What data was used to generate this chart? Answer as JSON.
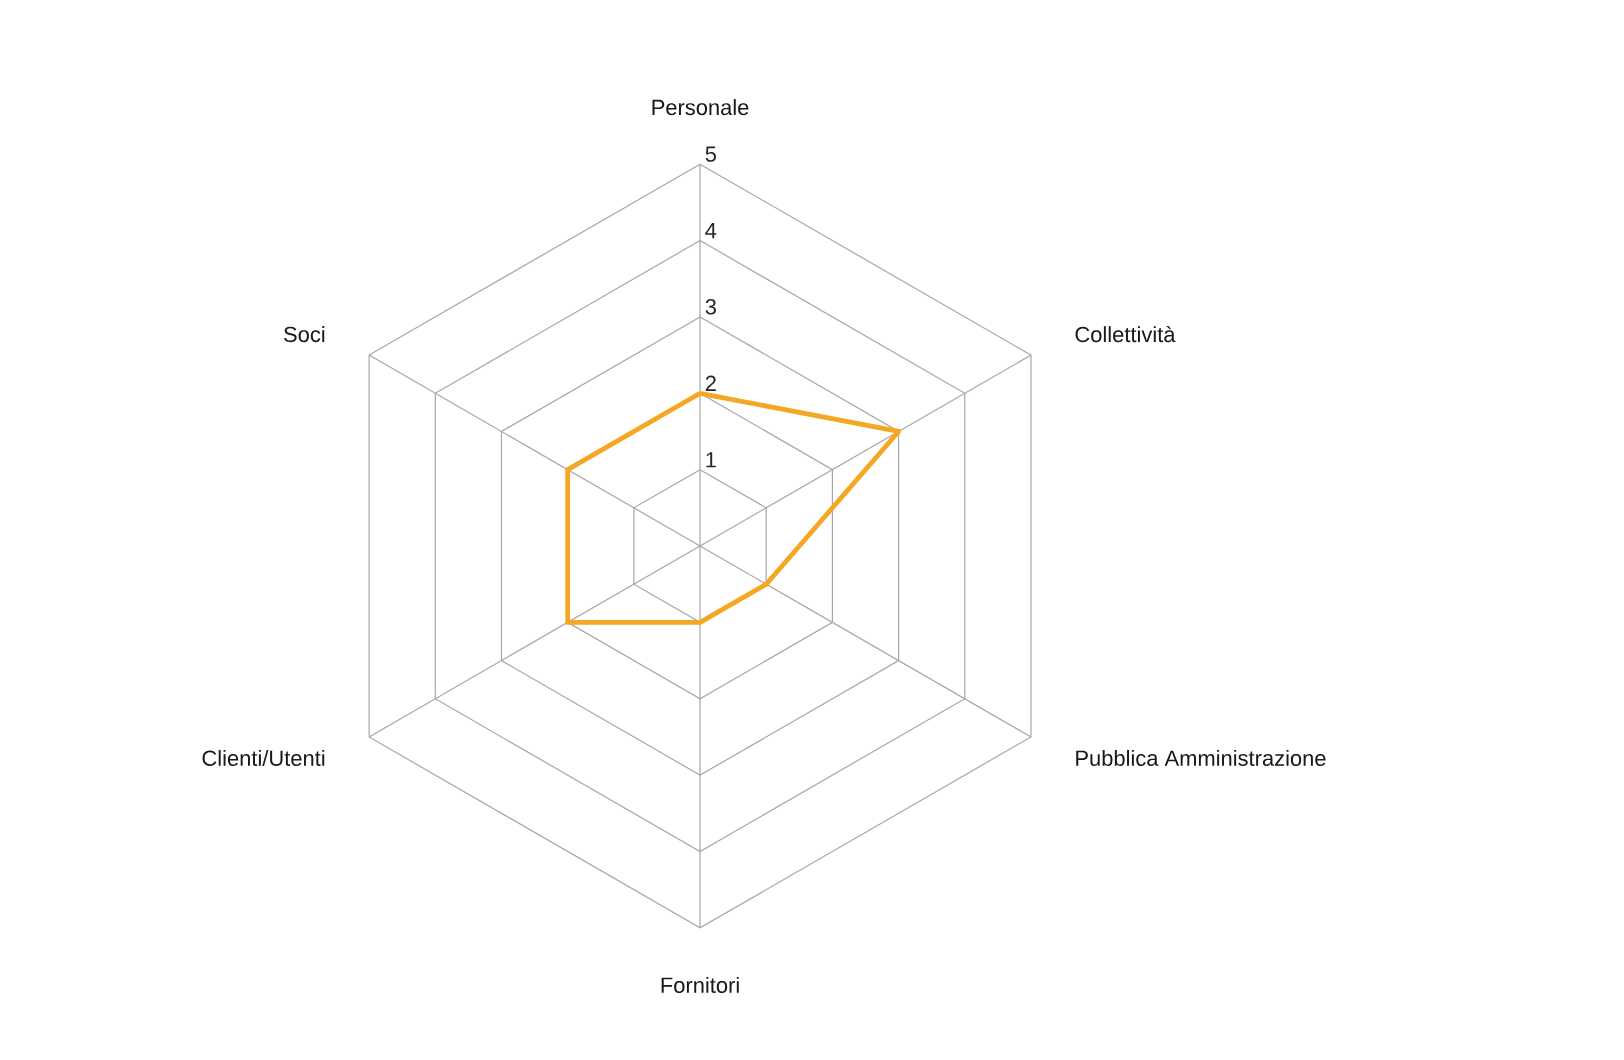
{
  "chart_data": {
    "type": "radar",
    "categories": [
      "Personale",
      "Collettività",
      "Pubblica Amministrazione",
      "Fornitori",
      "Clienti/Utenti",
      "Soci"
    ],
    "series": [
      {
        "color": "#f5a623",
        "values": [
          2,
          3,
          1,
          1,
          2,
          2
        ]
      }
    ],
    "ylim": [
      0,
      5
    ],
    "yticks": [
      1,
      2,
      3,
      4,
      5
    ],
    "grid": true
  }
}
